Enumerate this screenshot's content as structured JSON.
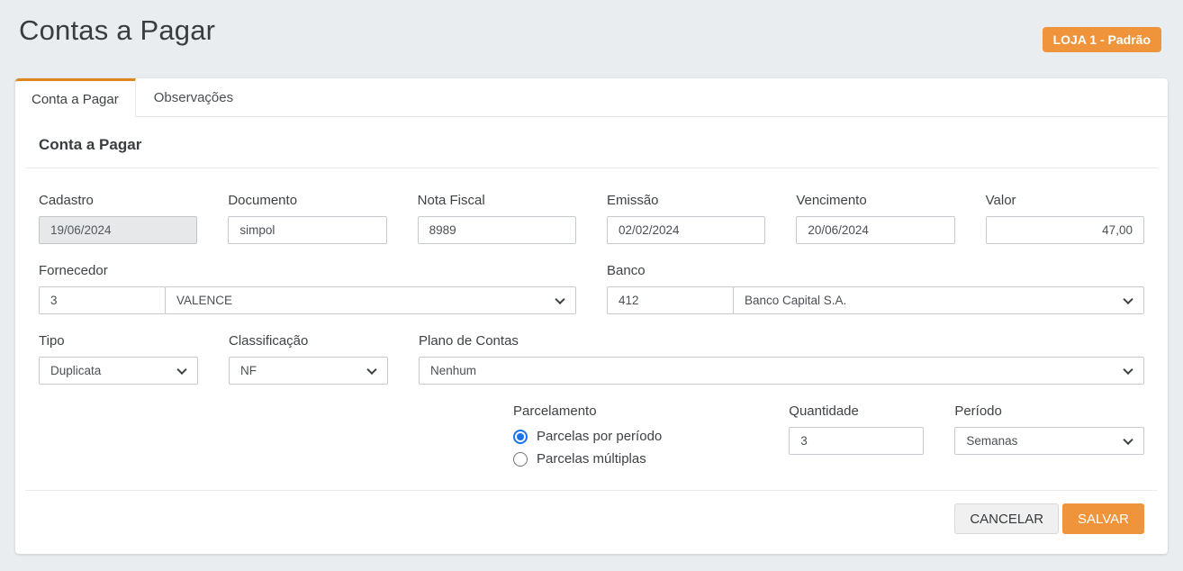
{
  "page": {
    "title": "Contas a Pagar",
    "store_badge": "LOJA 1 - Padrão"
  },
  "tabs": [
    {
      "label": "Conta a Pagar",
      "active": true
    },
    {
      "label": "Observações",
      "active": false
    }
  ],
  "section": {
    "heading": "Conta a Pagar"
  },
  "fields": {
    "cadastro": {
      "label": "Cadastro",
      "value": "19/06/2024",
      "disabled": true
    },
    "documento": {
      "label": "Documento",
      "value": "simpol"
    },
    "nota_fiscal": {
      "label": "Nota Fiscal",
      "value": "8989"
    },
    "emissao": {
      "label": "Emissão",
      "value": "02/02/2024"
    },
    "vencimento": {
      "label": "Vencimento",
      "value": "20/06/2024"
    },
    "valor": {
      "label": "Valor",
      "value": "47,00"
    },
    "fornecedor": {
      "label": "Fornecedor",
      "code": "3",
      "name": "VALENCE"
    },
    "banco": {
      "label": "Banco",
      "code": "412",
      "name": "Banco Capital S.A."
    },
    "tipo": {
      "label": "Tipo",
      "value": "Duplicata"
    },
    "classificacao": {
      "label": "Classificação",
      "value": "NF"
    },
    "plano_contas": {
      "label": "Plano de Contas",
      "value": "Nenhum"
    },
    "parcelamento": {
      "label": "Parcelamento",
      "options": [
        {
          "label": "Parcelas por período",
          "selected": true
        },
        {
          "label": "Parcelas múltiplas",
          "selected": false
        }
      ]
    },
    "quantidade": {
      "label": "Quantidade",
      "value": "3"
    },
    "periodo": {
      "label": "Período",
      "value": "Semanas"
    }
  },
  "footer": {
    "cancel_label": "CANCELAR",
    "save_label": "SALVAR"
  },
  "colors": {
    "accent_orange": "#f0943c",
    "tab_border_orange": "#df861f",
    "radio_blue": "#1a73e8",
    "page_background": "#e9edf0"
  }
}
